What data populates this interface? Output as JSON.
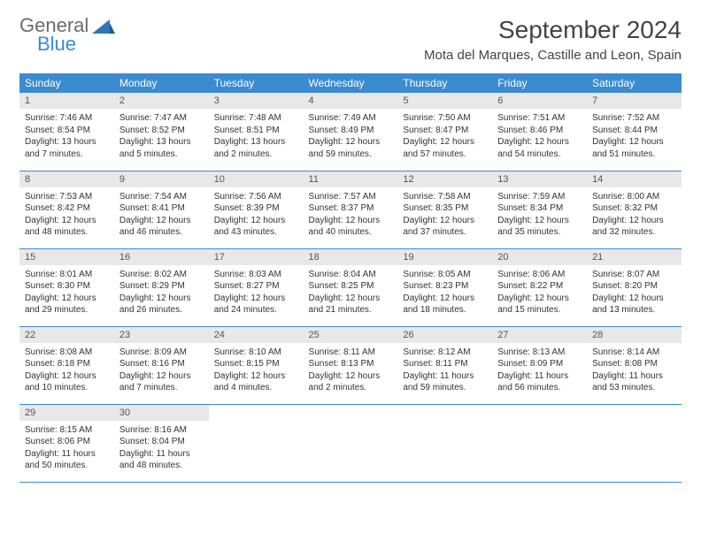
{
  "brand": {
    "general": "General",
    "blue": "Blue"
  },
  "title": "September 2024",
  "location": "Mota del Marques, Castille and Leon, Spain",
  "colors": {
    "header_bg": "#3b8bd0",
    "header_text": "#ffffff",
    "daynum_bg": "#e8e8e8",
    "border": "#3b8bd0",
    "text": "#333333"
  },
  "weekdays": [
    "Sunday",
    "Monday",
    "Tuesday",
    "Wednesday",
    "Thursday",
    "Friday",
    "Saturday"
  ],
  "weeks": [
    [
      {
        "n": "1",
        "sr": "Sunrise: 7:46 AM",
        "ss": "Sunset: 8:54 PM",
        "dl": "Daylight: 13 hours and 7 minutes."
      },
      {
        "n": "2",
        "sr": "Sunrise: 7:47 AM",
        "ss": "Sunset: 8:52 PM",
        "dl": "Daylight: 13 hours and 5 minutes."
      },
      {
        "n": "3",
        "sr": "Sunrise: 7:48 AM",
        "ss": "Sunset: 8:51 PM",
        "dl": "Daylight: 13 hours and 2 minutes."
      },
      {
        "n": "4",
        "sr": "Sunrise: 7:49 AM",
        "ss": "Sunset: 8:49 PM",
        "dl": "Daylight: 12 hours and 59 minutes."
      },
      {
        "n": "5",
        "sr": "Sunrise: 7:50 AM",
        "ss": "Sunset: 8:47 PM",
        "dl": "Daylight: 12 hours and 57 minutes."
      },
      {
        "n": "6",
        "sr": "Sunrise: 7:51 AM",
        "ss": "Sunset: 8:46 PM",
        "dl": "Daylight: 12 hours and 54 minutes."
      },
      {
        "n": "7",
        "sr": "Sunrise: 7:52 AM",
        "ss": "Sunset: 8:44 PM",
        "dl": "Daylight: 12 hours and 51 minutes."
      }
    ],
    [
      {
        "n": "8",
        "sr": "Sunrise: 7:53 AM",
        "ss": "Sunset: 8:42 PM",
        "dl": "Daylight: 12 hours and 48 minutes."
      },
      {
        "n": "9",
        "sr": "Sunrise: 7:54 AM",
        "ss": "Sunset: 8:41 PM",
        "dl": "Daylight: 12 hours and 46 minutes."
      },
      {
        "n": "10",
        "sr": "Sunrise: 7:56 AM",
        "ss": "Sunset: 8:39 PM",
        "dl": "Daylight: 12 hours and 43 minutes."
      },
      {
        "n": "11",
        "sr": "Sunrise: 7:57 AM",
        "ss": "Sunset: 8:37 PM",
        "dl": "Daylight: 12 hours and 40 minutes."
      },
      {
        "n": "12",
        "sr": "Sunrise: 7:58 AM",
        "ss": "Sunset: 8:35 PM",
        "dl": "Daylight: 12 hours and 37 minutes."
      },
      {
        "n": "13",
        "sr": "Sunrise: 7:59 AM",
        "ss": "Sunset: 8:34 PM",
        "dl": "Daylight: 12 hours and 35 minutes."
      },
      {
        "n": "14",
        "sr": "Sunrise: 8:00 AM",
        "ss": "Sunset: 8:32 PM",
        "dl": "Daylight: 12 hours and 32 minutes."
      }
    ],
    [
      {
        "n": "15",
        "sr": "Sunrise: 8:01 AM",
        "ss": "Sunset: 8:30 PM",
        "dl": "Daylight: 12 hours and 29 minutes."
      },
      {
        "n": "16",
        "sr": "Sunrise: 8:02 AM",
        "ss": "Sunset: 8:29 PM",
        "dl": "Daylight: 12 hours and 26 minutes."
      },
      {
        "n": "17",
        "sr": "Sunrise: 8:03 AM",
        "ss": "Sunset: 8:27 PM",
        "dl": "Daylight: 12 hours and 24 minutes."
      },
      {
        "n": "18",
        "sr": "Sunrise: 8:04 AM",
        "ss": "Sunset: 8:25 PM",
        "dl": "Daylight: 12 hours and 21 minutes."
      },
      {
        "n": "19",
        "sr": "Sunrise: 8:05 AM",
        "ss": "Sunset: 8:23 PM",
        "dl": "Daylight: 12 hours and 18 minutes."
      },
      {
        "n": "20",
        "sr": "Sunrise: 8:06 AM",
        "ss": "Sunset: 8:22 PM",
        "dl": "Daylight: 12 hours and 15 minutes."
      },
      {
        "n": "21",
        "sr": "Sunrise: 8:07 AM",
        "ss": "Sunset: 8:20 PM",
        "dl": "Daylight: 12 hours and 13 minutes."
      }
    ],
    [
      {
        "n": "22",
        "sr": "Sunrise: 8:08 AM",
        "ss": "Sunset: 8:18 PM",
        "dl": "Daylight: 12 hours and 10 minutes."
      },
      {
        "n": "23",
        "sr": "Sunrise: 8:09 AM",
        "ss": "Sunset: 8:16 PM",
        "dl": "Daylight: 12 hours and 7 minutes."
      },
      {
        "n": "24",
        "sr": "Sunrise: 8:10 AM",
        "ss": "Sunset: 8:15 PM",
        "dl": "Daylight: 12 hours and 4 minutes."
      },
      {
        "n": "25",
        "sr": "Sunrise: 8:11 AM",
        "ss": "Sunset: 8:13 PM",
        "dl": "Daylight: 12 hours and 2 minutes."
      },
      {
        "n": "26",
        "sr": "Sunrise: 8:12 AM",
        "ss": "Sunset: 8:11 PM",
        "dl": "Daylight: 11 hours and 59 minutes."
      },
      {
        "n": "27",
        "sr": "Sunrise: 8:13 AM",
        "ss": "Sunset: 8:09 PM",
        "dl": "Daylight: 11 hours and 56 minutes."
      },
      {
        "n": "28",
        "sr": "Sunrise: 8:14 AM",
        "ss": "Sunset: 8:08 PM",
        "dl": "Daylight: 11 hours and 53 minutes."
      }
    ],
    [
      {
        "n": "29",
        "sr": "Sunrise: 8:15 AM",
        "ss": "Sunset: 8:06 PM",
        "dl": "Daylight: 11 hours and 50 minutes."
      },
      {
        "n": "30",
        "sr": "Sunrise: 8:16 AM",
        "ss": "Sunset: 8:04 PM",
        "dl": "Daylight: 11 hours and 48 minutes."
      },
      null,
      null,
      null,
      null,
      null
    ]
  ]
}
